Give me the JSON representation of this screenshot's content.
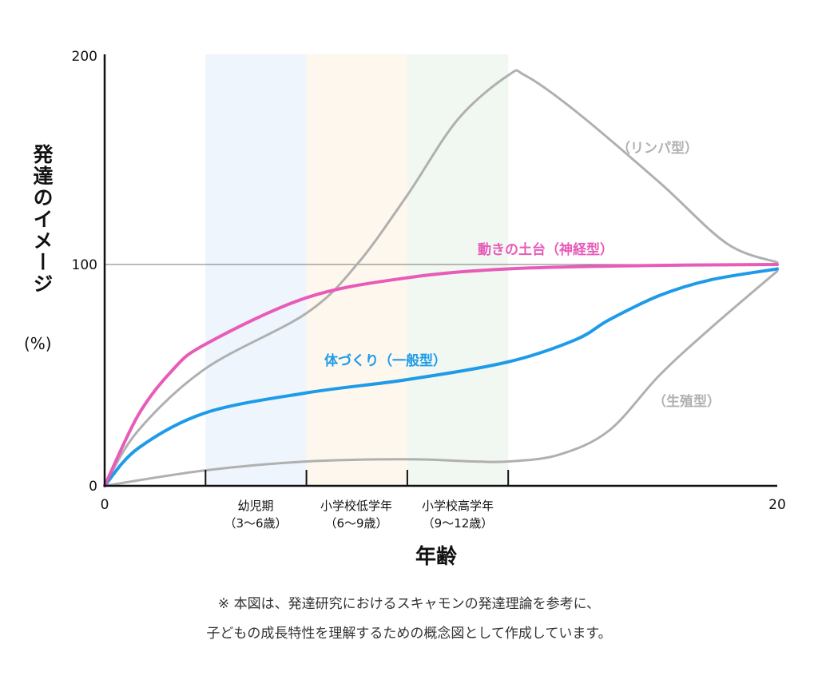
{
  "chart_data": {
    "type": "line",
    "title": "",
    "xlabel": "年齢",
    "ylabel": "発達のイメージ",
    "yunit": "(%)",
    "xlim": [
      0,
      20
    ],
    "ylim": [
      0,
      200
    ],
    "x_ticks": [
      "0",
      "20"
    ],
    "y_ticks": [
      "0",
      "100",
      "200"
    ],
    "reference_line": 100,
    "grid": false,
    "periods": [
      {
        "name": "幼児期",
        "range_label": "（3〜6歳）",
        "from": 3,
        "to": 6,
        "color": "#eef5fd"
      },
      {
        "name": "小学校低学年",
        "range_label": "（6〜9歳）",
        "from": 6,
        "to": 9,
        "color": "#fef7ee"
      },
      {
        "name": "小学校高学年",
        "range_label": "（9〜12歳）",
        "from": 9,
        "to": 12,
        "color": "#f1f7f1"
      }
    ],
    "series": [
      {
        "name": "（リンパ型）",
        "color": "#b0b0b0",
        "label_color": "#b0b0b0",
        "x": [
          0,
          1,
          3,
          6,
          7.5,
          9,
          10.5,
          12,
          12.5,
          14,
          16.5,
          18.5,
          20
        ],
        "y": [
          0,
          25,
          53,
          78,
          100,
          133,
          169,
          190,
          190,
          173,
          139,
          110,
          101
        ]
      },
      {
        "name": "（生殖型）",
        "color": "#b0b0b0",
        "label_color": "#b0b0b0",
        "x": [
          0,
          3,
          6,
          9,
          11,
          12,
          13.5,
          15,
          16.5,
          18,
          20
        ],
        "y": [
          0,
          7,
          11,
          12,
          11,
          11,
          14,
          25,
          50,
          71,
          97
        ]
      },
      {
        "name": "体づくり（一般型）",
        "color": "#1e9be8",
        "label_color": "#1e9be8",
        "x": [
          0,
          1,
          3,
          6,
          9,
          12,
          14,
          15,
          16.5,
          18,
          20
        ],
        "y": [
          0,
          17,
          33,
          42,
          48,
          56,
          66,
          75,
          86,
          93,
          98
        ]
      },
      {
        "name": "動きの土台（神経型）",
        "color": "#e85bb8",
        "label_color": "#e85bb8",
        "x": [
          0,
          1,
          2,
          3,
          6,
          9,
          12,
          16,
          20
        ],
        "y": [
          0,
          32,
          52,
          64,
          85,
          94,
          98,
          99.5,
          100
        ]
      }
    ]
  },
  "note": {
    "line1": "※ 本図は、発達研究におけるスキャモンの発達理論を参考に、",
    "line2": "子どもの成長特性を理解するための概念図として作成しています。"
  }
}
